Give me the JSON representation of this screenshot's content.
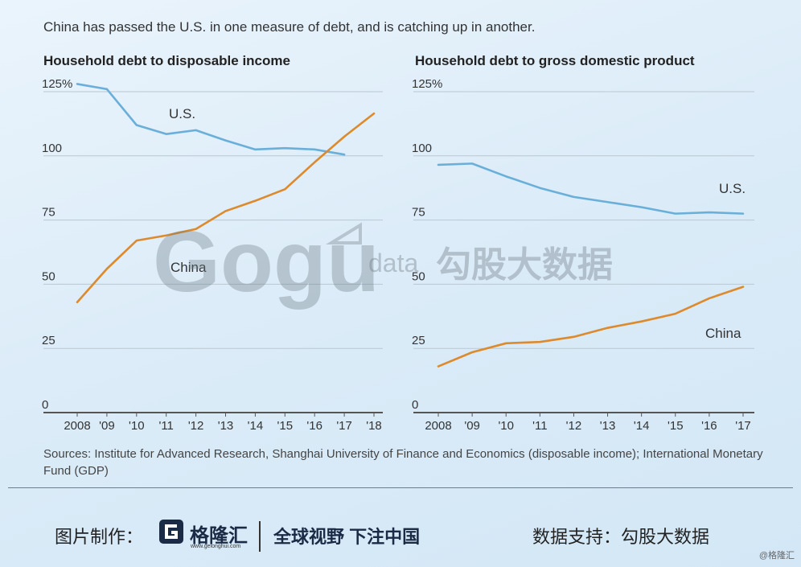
{
  "subtitle": "China has passed the U.S. in one measure of debt, and is catching up in another.",
  "colors": {
    "us": "#6aafd9",
    "china": "#dd8a2c",
    "grid": "#b9c7d2",
    "axis": "#555555"
  },
  "chart_data": [
    {
      "type": "line",
      "title": "Household debt to disposable income",
      "x_labels": [
        "2008",
        "'09",
        "'10",
        "'11",
        "'12",
        "'13",
        "'14",
        "'15",
        "'16",
        "'17",
        "'18"
      ],
      "y_ticks": [
        "0",
        "25",
        "50",
        "75",
        "100",
        "125%"
      ],
      "y_tick_values": [
        0,
        25,
        50,
        75,
        100,
        125
      ],
      "ylim": [
        0,
        125
      ],
      "series": [
        {
          "name": "U.S.",
          "values": [
            128,
            126,
            112,
            108.5,
            110,
            106,
            102.5,
            103,
            102.5,
            100.5
          ]
        },
        {
          "name": "China",
          "values": [
            43,
            56,
            67,
            69,
            71.5,
            78.5,
            82.5,
            87,
            97.5,
            107.5,
            116.5
          ]
        }
      ]
    },
    {
      "type": "line",
      "title": "Household debt to gross domestic product",
      "x_labels": [
        "2008",
        "'09",
        "'10",
        "'11",
        "'12",
        "'13",
        "'14",
        "'15",
        "'16",
        "'17"
      ],
      "y_ticks": [
        "0",
        "25",
        "50",
        "75",
        "100",
        "125%"
      ],
      "y_tick_values": [
        0,
        25,
        50,
        75,
        100,
        125
      ],
      "ylim": [
        0,
        125
      ],
      "series": [
        {
          "name": "U.S.",
          "values": [
            96.5,
            97,
            92,
            87.5,
            84,
            82,
            80,
            77.5,
            78,
            77.5
          ]
        },
        {
          "name": "China",
          "values": [
            18,
            23.5,
            27,
            27.5,
            29.5,
            33,
            35.5,
            38.5,
            44.5,
            49
          ]
        }
      ]
    }
  ],
  "sources": "Sources: Institute for Advanced Research, Shanghai University of Finance and Economics (disposable income); International Monetary Fund (GDP)",
  "watermark": {
    "latin": "Gogu",
    "data": "data",
    "cn": "勾股大数据"
  },
  "footer": {
    "credit_label": "图片制作：",
    "brand": "格隆汇",
    "brand_url": "www.gelonghui.com",
    "slogan": "全球视野 下注中国",
    "support": "数据支持：勾股大数据",
    "corner": "@格隆汇"
  }
}
